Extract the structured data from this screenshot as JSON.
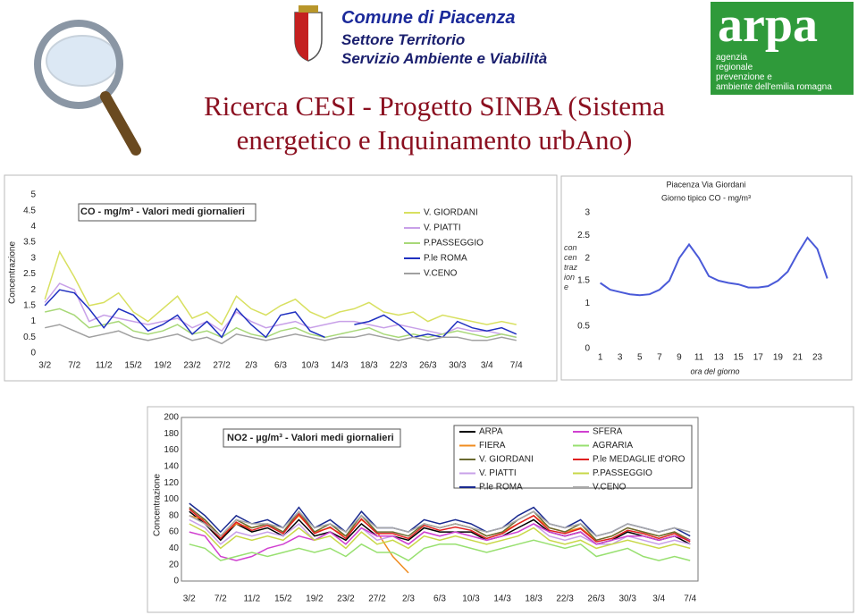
{
  "header": {
    "org": "Comune di Piacenza",
    "dept": "Settore Territorio",
    "service": "Servizio Ambiente e Viabilità",
    "title": "Ricerca CESI - Progetto SINBA (Sistema energetico e Inquinamento urbAno)",
    "logo_name": "arpa",
    "logo_lines": [
      "agenzia",
      "regionale",
      "prevenzione e",
      "ambiente dell'emilia romagna"
    ]
  },
  "chart_data": [
    {
      "type": "line",
      "title": "CO - mg/m³ - Valori medi giornalieri",
      "y_label": "Concentrazione",
      "grid": false,
      "legend": "top-right",
      "categories": [
        "3/2",
        null,
        "7/2",
        null,
        "11/2",
        null,
        "15/2",
        null,
        "19/2",
        null,
        "23/2",
        null,
        "27/2",
        null,
        "2/3",
        null,
        "6/3",
        null,
        "10/3",
        null,
        "14/3",
        null,
        "18/3",
        null,
        "22/3",
        null,
        "26/3",
        null,
        "30/3",
        null,
        "3/4",
        null,
        "7/4"
      ],
      "ylim": [
        0,
        5
      ],
      "yticks": [
        0,
        0.5,
        1,
        1.5,
        2,
        2.5,
        3,
        3.5,
        4,
        4.5,
        5
      ],
      "series": [
        {
          "name": "V. GIORDANI",
          "color": "#d8e060",
          "values": [
            1.7,
            3.2,
            2.4,
            1.5,
            1.6,
            1.9,
            1.3,
            1.0,
            1.4,
            1.8,
            1.1,
            1.3,
            0.9,
            1.8,
            1.4,
            1.2,
            1.5,
            1.7,
            1.3,
            1.1,
            1.3,
            1.4,
            1.6,
            1.3,
            1.2,
            1.3,
            1.0,
            1.2,
            1.1,
            1.0,
            0.9,
            1.0,
            0.9
          ]
        },
        {
          "name": "V. PIATTI",
          "color": "#c8a0e8",
          "values": [
            1.6,
            2.2,
            2.0,
            1.0,
            1.2,
            1.1,
            1.0,
            0.9,
            1.0,
            1.1,
            0.8,
            1.0,
            0.7,
            1.3,
            1.0,
            0.8,
            0.9,
            1.0,
            0.8,
            0.9,
            1.0,
            1.0,
            0.9,
            0.8,
            0.9,
            0.8,
            0.7,
            0.6,
            0.8,
            0.7,
            0.7,
            0.6,
            0.5
          ]
        },
        {
          "name": "P.PASSEGGIO",
          "color": "#a8d878",
          "values": [
            1.3,
            1.4,
            1.2,
            0.8,
            0.9,
            1.0,
            0.7,
            0.6,
            0.7,
            0.9,
            0.6,
            0.7,
            0.5,
            0.8,
            0.6,
            0.5,
            0.7,
            0.8,
            0.6,
            0.5,
            0.6,
            0.7,
            0.8,
            0.6,
            0.5,
            0.6,
            0.5,
            0.6,
            0.7,
            0.6,
            0.5,
            0.6,
            0.5
          ]
        },
        {
          "name": "P.le ROMA",
          "color": "#2030c0",
          "values": [
            1.5,
            2.0,
            1.9,
            1.4,
            0.8,
            1.4,
            1.2,
            0.7,
            0.9,
            1.2,
            0.6,
            1.0,
            0.5,
            1.4,
            0.9,
            0.5,
            1.2,
            1.3,
            0.7,
            0.5,
            null,
            0.9,
            1.0,
            1.2,
            0.9,
            0.5,
            0.6,
            0.5,
            1.0,
            0.8,
            0.7,
            0.8,
            0.6
          ]
        },
        {
          "name": "V.CENO",
          "color": "#a0a0a0",
          "values": [
            0.8,
            0.9,
            0.7,
            0.5,
            0.6,
            0.7,
            0.5,
            0.4,
            0.5,
            0.6,
            0.4,
            0.5,
            0.3,
            0.6,
            0.5,
            0.4,
            0.5,
            0.6,
            0.5,
            0.4,
            0.5,
            0.5,
            0.6,
            0.5,
            0.4,
            0.5,
            0.4,
            0.5,
            0.5,
            0.4,
            0.4,
            0.5,
            0.4
          ]
        }
      ]
    },
    {
      "type": "line",
      "title": "Piacenza Via Giordani",
      "subtitle": "Giorno tipico CO - mg/m³",
      "y_label": "concentrazione",
      "x_label": "ora del giorno",
      "grid": false,
      "x": [
        1,
        2,
        3,
        4,
        5,
        6,
        7,
        8,
        9,
        10,
        11,
        12,
        13,
        14,
        15,
        16,
        17,
        18,
        19,
        20,
        21,
        22,
        23,
        24
      ],
      "xlim": [
        0.4,
        24.4
      ],
      "xticks": [
        1,
        3,
        5,
        7,
        9,
        11,
        13,
        15,
        17,
        19,
        21,
        23
      ],
      "ylim": [
        0,
        3
      ],
      "yticks": [
        0,
        0.5,
        1,
        1.5,
        2,
        2.5,
        3
      ],
      "series": [
        {
          "color": "#4a5ad8",
          "values": [
            1.45,
            1.3,
            1.25,
            1.2,
            1.18,
            1.2,
            1.3,
            1.5,
            2.0,
            2.3,
            2.0,
            1.6,
            1.5,
            1.45,
            1.42,
            1.35,
            1.35,
            1.38,
            1.5,
            1.7,
            2.1,
            2.45,
            2.2,
            1.55
          ]
        }
      ]
    },
    {
      "type": "line",
      "title": "NO2 - µg/m³ - Valori medi giornalieri",
      "y_label": "Concentrazione",
      "grid": false,
      "legend": "top-right",
      "categories": [
        "3/2",
        null,
        "7/2",
        null,
        "11/2",
        null,
        "15/2",
        null,
        "19/2",
        null,
        "23/2",
        null,
        "27/2",
        null,
        "2/3",
        null,
        "6/3",
        null,
        "10/3",
        null,
        "14/3",
        null,
        "18/3",
        null,
        "22/3",
        null,
        "26/3",
        null,
        "30/3",
        null,
        "3/4",
        null,
        "7/4"
      ],
      "ylim": [
        0,
        200
      ],
      "yticks": [
        0,
        20,
        40,
        60,
        80,
        100,
        120,
        140,
        160,
        180,
        200
      ],
      "series": [
        {
          "name": "ARPA",
          "color": "#000000",
          "values": [
            85,
            70,
            50,
            70,
            60,
            65,
            55,
            75,
            55,
            60,
            50,
            70,
            55,
            55,
            50,
            65,
            60,
            60,
            60,
            50,
            55,
            65,
            75,
            60,
            55,
            60,
            45,
            50,
            60,
            55,
            50,
            55,
            45
          ]
        },
        {
          "name": "FIERA",
          "color": "#f08c20",
          "values": [
            80,
            75,
            55,
            70,
            65,
            70,
            60,
            80,
            60,
            65,
            55,
            75,
            60,
            30,
            10,
            null,
            65,
            70,
            65,
            55,
            60,
            70,
            80,
            65,
            60,
            65,
            50,
            55,
            65,
            60,
            55,
            60,
            50
          ]
        },
        {
          "name": "V. GIORDANI",
          "color": "#6a6a30",
          "values": [
            90,
            75,
            55,
            75,
            65,
            70,
            60,
            85,
            60,
            70,
            55,
            80,
            60,
            60,
            55,
            70,
            65,
            70,
            65,
            55,
            60,
            75,
            85,
            65,
            60,
            70,
            50,
            55,
            65,
            60,
            55,
            60,
            50
          ]
        },
        {
          "name": "V. PIATTI",
          "color": "#c8a0e8",
          "values": [
            75,
            65,
            45,
            60,
            55,
            60,
            55,
            70,
            50,
            60,
            45,
            65,
            50,
            55,
            45,
            60,
            55,
            60,
            55,
            50,
            55,
            60,
            70,
            55,
            50,
            55,
            45,
            45,
            55,
            50,
            45,
            50,
            45
          ]
        },
        {
          "name": "P.le ROMA",
          "color": "#1a2a90",
          "values": [
            95,
            80,
            60,
            80,
            70,
            75,
            65,
            90,
            65,
            75,
            60,
            85,
            65,
            65,
            60,
            75,
            70,
            75,
            70,
            60,
            65,
            80,
            90,
            70,
            65,
            75,
            55,
            60,
            70,
            65,
            60,
            65,
            55
          ]
        },
        {
          "name": "SFERA",
          "color": "#d040d0",
          "values": [
            60,
            55,
            30,
            25,
            30,
            40,
            45,
            55,
            50,
            60,
            45,
            65,
            55,
            55,
            45,
            60,
            55,
            60,
            55,
            50,
            55,
            60,
            70,
            60,
            55,
            60,
            45,
            50,
            55,
            55,
            50,
            55,
            50
          ]
        },
        {
          "name": "AGRARIA",
          "color": "#98e070",
          "values": [
            45,
            40,
            25,
            30,
            35,
            30,
            35,
            40,
            35,
            40,
            30,
            45,
            35,
            35,
            25,
            40,
            45,
            45,
            40,
            35,
            40,
            45,
            50,
            45,
            40,
            45,
            30,
            35,
            40,
            30,
            25,
            30,
            25
          ]
        },
        {
          "name": "P.le MEDAGLIE d'ORO",
          "color": "#e02020",
          "values": [
            88,
            72,
            52,
            72,
            62,
            68,
            58,
            82,
            58,
            66,
            52,
            76,
            58,
            58,
            52,
            68,
            62,
            66,
            62,
            52,
            58,
            70,
            80,
            62,
            58,
            64,
            48,
            52,
            62,
            58,
            52,
            58,
            48
          ]
        },
        {
          "name": "P.PASSEGGIO",
          "color": "#c8d848",
          "values": [
            70,
            60,
            40,
            55,
            50,
            55,
            50,
            65,
            50,
            55,
            40,
            60,
            45,
            50,
            40,
            55,
            50,
            55,
            50,
            45,
            50,
            55,
            65,
            50,
            45,
            50,
            40,
            45,
            50,
            45,
            40,
            45,
            40
          ]
        },
        {
          "name": "V.CENO",
          "color": "#a8a8a8",
          "values": [
            80,
            70,
            55,
            75,
            70,
            70,
            65,
            85,
            65,
            70,
            60,
            80,
            65,
            65,
            60,
            70,
            65,
            70,
            65,
            60,
            65,
            75,
            85,
            70,
            65,
            70,
            55,
            60,
            70,
            65,
            60,
            65,
            60
          ]
        }
      ]
    }
  ]
}
